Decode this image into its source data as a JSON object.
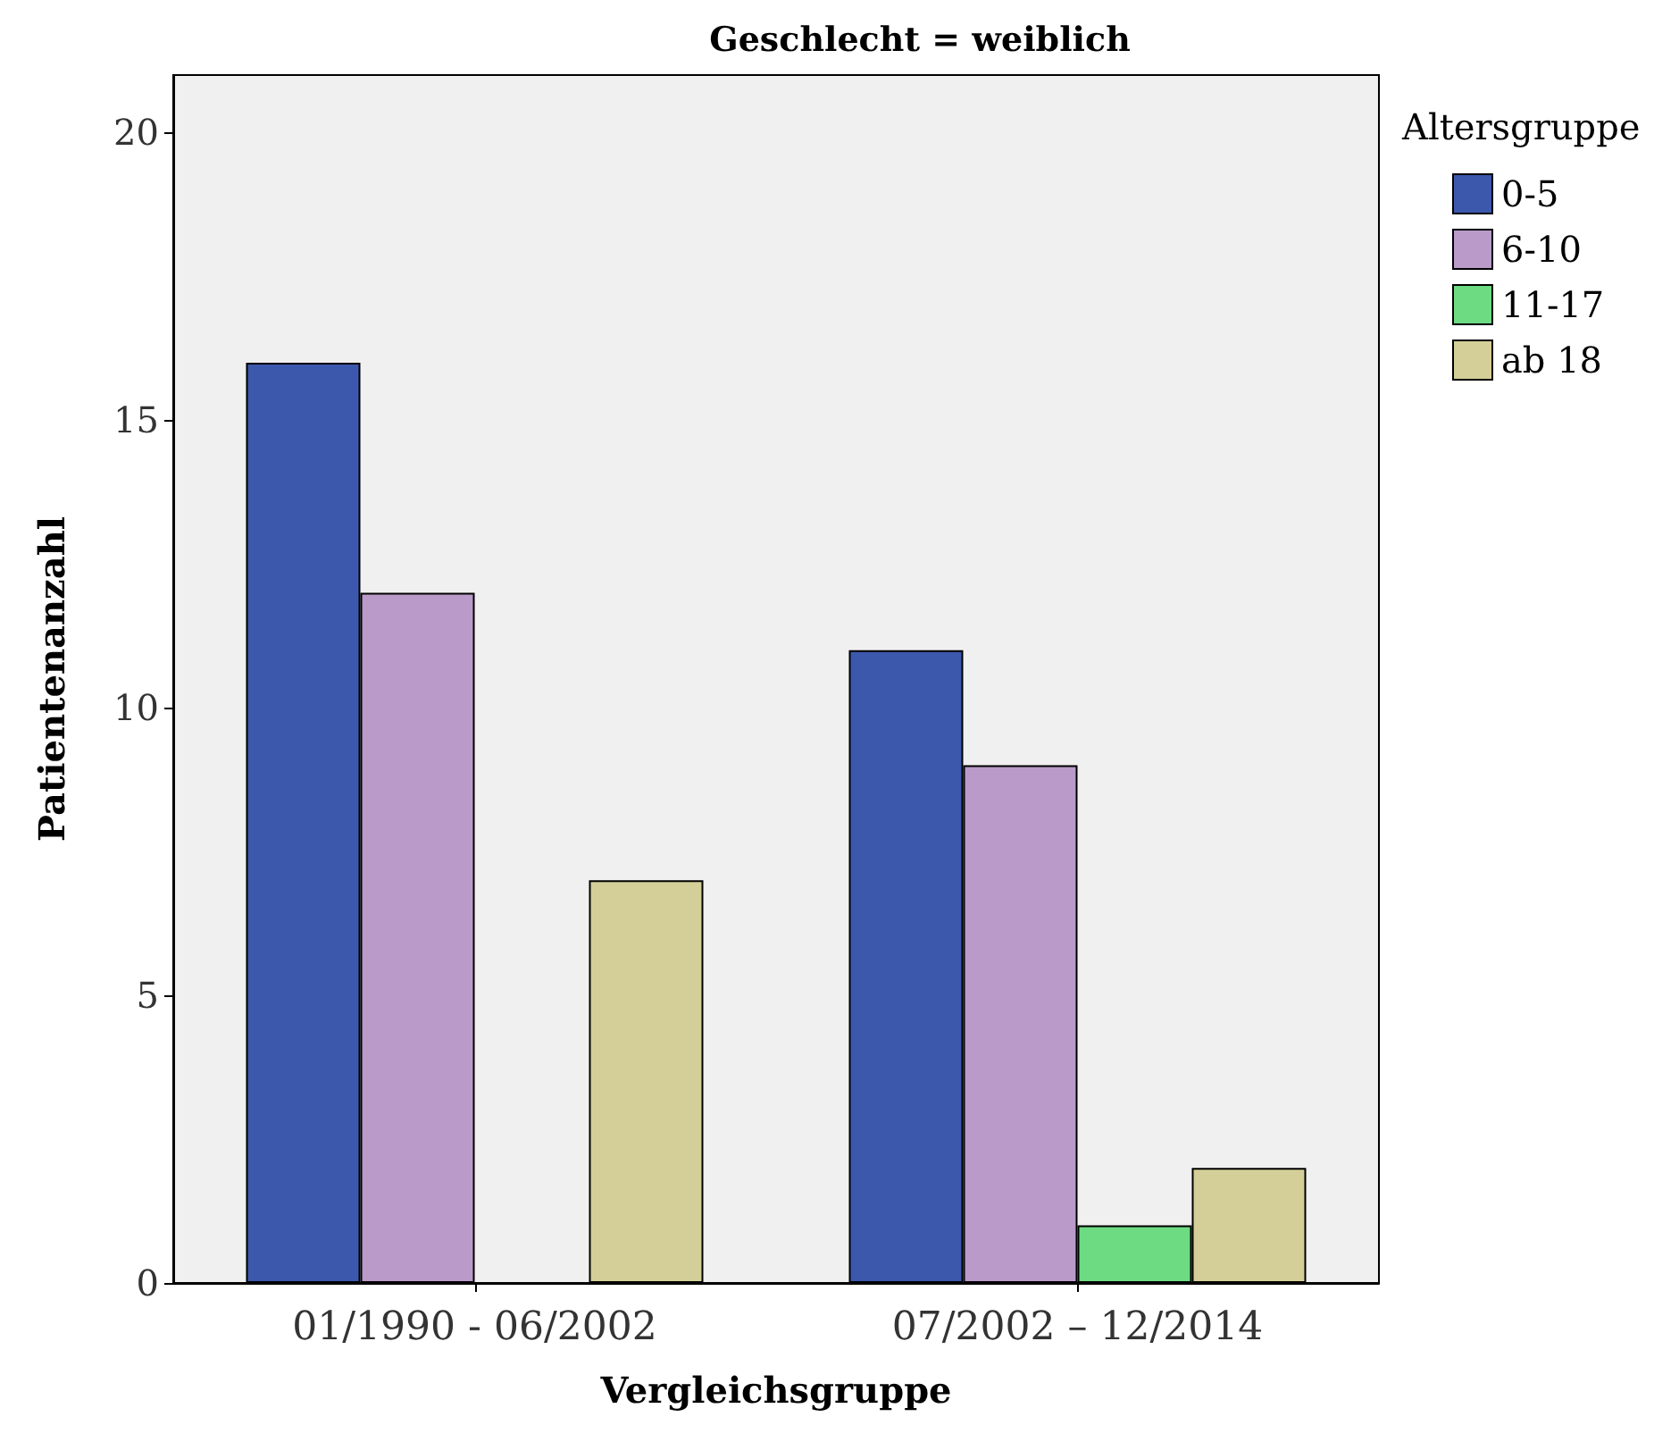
{
  "chart_data": {
    "type": "bar",
    "title": "Geschlecht = weiblich",
    "xlabel": "Vergleichsgruppe",
    "ylabel": "Patientenanzahl",
    "legend_title": "Altersgruppe",
    "categories": [
      "01/1990 - 06/2002",
      "07/2002 – 12/2014"
    ],
    "series": [
      {
        "name": "0-5",
        "color": "#3c58ad",
        "values": [
          16,
          11
        ]
      },
      {
        "name": "6-10",
        "color": "#b99ac9",
        "values": [
          12,
          9
        ]
      },
      {
        "name": "11-17",
        "color": "#6ddb82",
        "values": [
          null,
          1
        ]
      },
      {
        "name": "ab 18",
        "color": "#d4cf98",
        "values": [
          7,
          2
        ]
      }
    ],
    "ylim": [
      0,
      21
    ],
    "yticks": [
      0,
      5,
      10,
      15,
      20
    ],
    "grid": false,
    "legend": "top right"
  }
}
